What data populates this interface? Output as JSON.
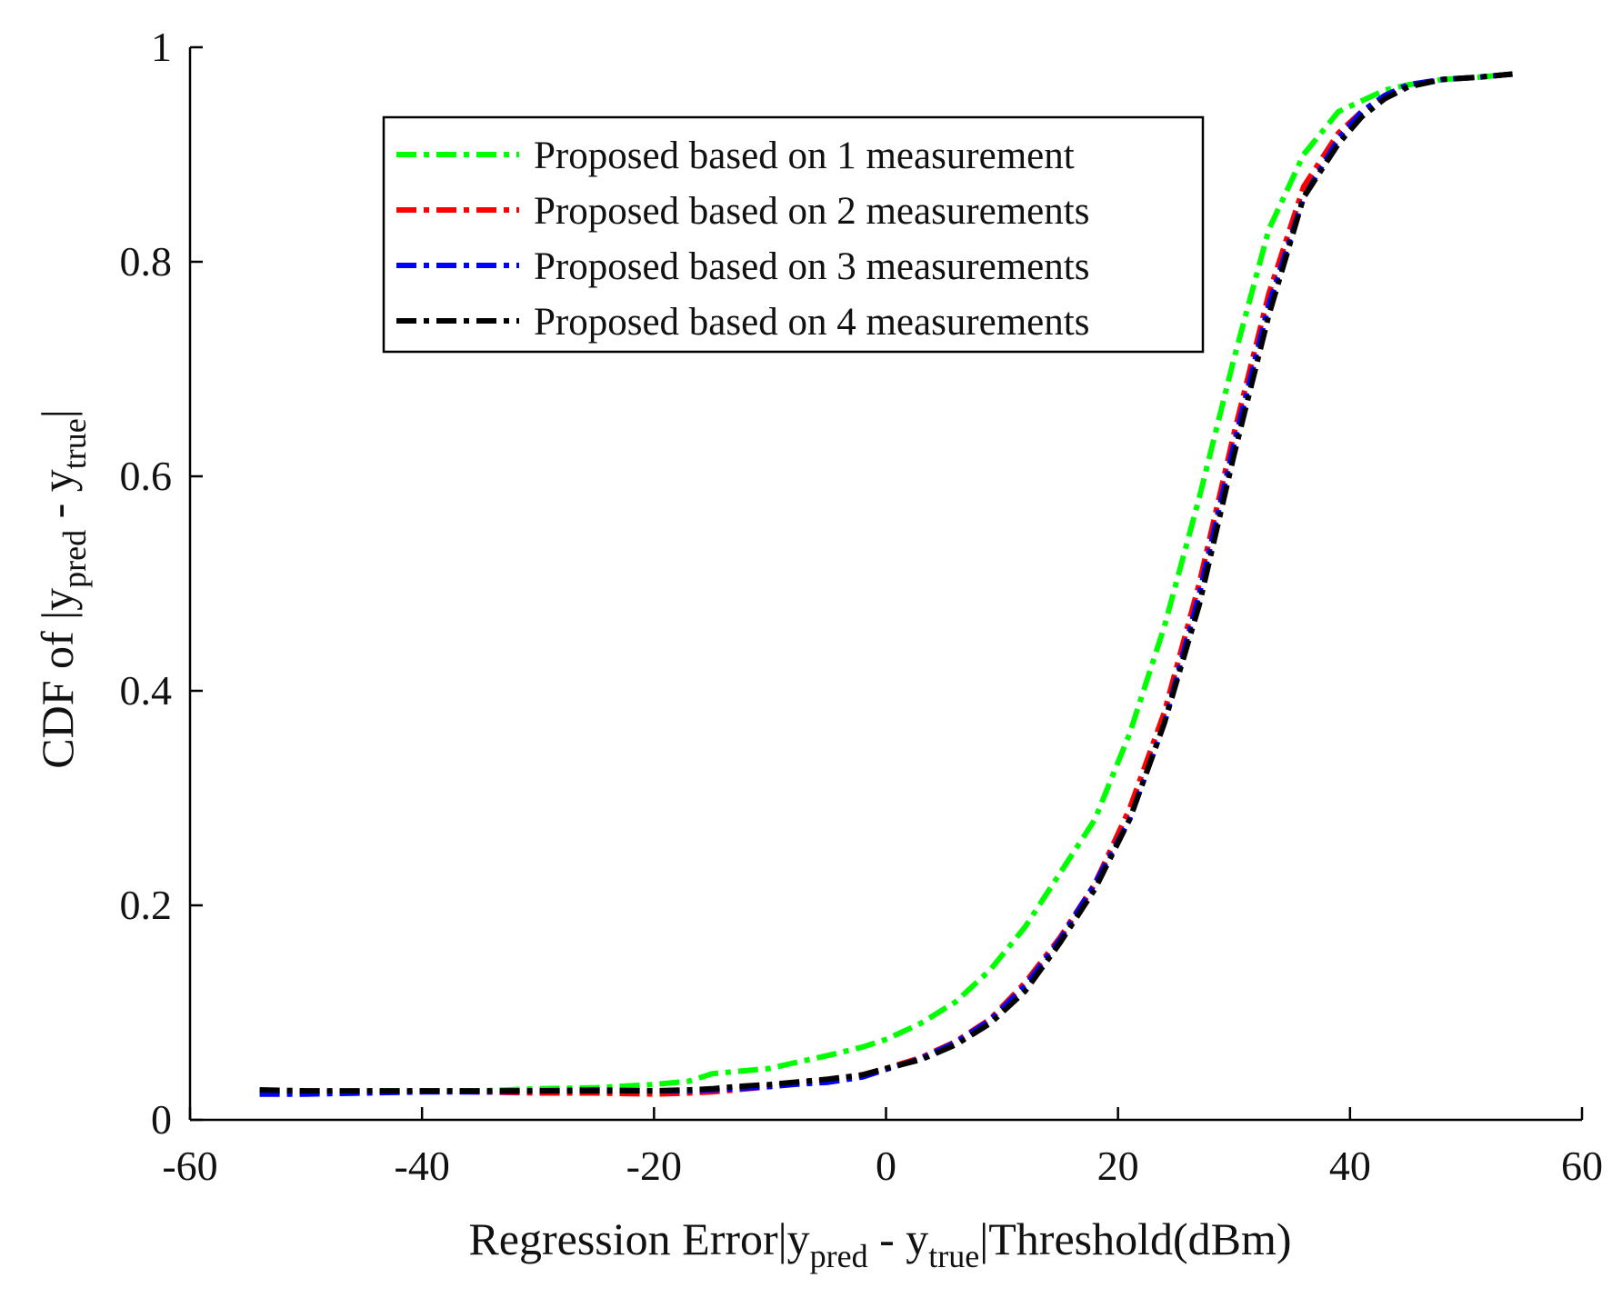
{
  "chart_data": {
    "type": "line",
    "title": "",
    "xlabel": {
      "parts": [
        "Regression Error|y",
        "pred",
        " - y",
        "true",
        "|Threshold(dBm)"
      ]
    },
    "ylabel": {
      "parts": [
        "CDF of |y",
        "pred",
        " - y",
        "true",
        "|"
      ]
    },
    "xlim": [
      -60,
      60
    ],
    "ylim": [
      0,
      1
    ],
    "xticks": [
      -60,
      -40,
      -20,
      0,
      20,
      40,
      60
    ],
    "xtick_labels": [
      "-60",
      "-40",
      "-20",
      "0",
      "20",
      "40",
      "60"
    ],
    "yticks": [
      0,
      0.2,
      0.4,
      0.6,
      0.8,
      1
    ],
    "ytick_labels": [
      "0",
      "0.2",
      "0.4",
      "0.6",
      "0.8",
      "1"
    ],
    "grid": false,
    "legend_position": "top-center",
    "series": [
      {
        "name": "Proposed based on 1 measurement",
        "color": "#00ff00",
        "style": "dash-dot",
        "x": [
          -54,
          -50,
          -45,
          -40,
          -35,
          -30,
          -25,
          -20,
          -17,
          -15,
          -13,
          -10,
          -8,
          -5,
          -2,
          0,
          3,
          6,
          9,
          12,
          15,
          18,
          21,
          24,
          27,
          30,
          33,
          36,
          39,
          41,
          43,
          45,
          48,
          51,
          54
        ],
        "y": [
          0.026,
          0.026,
          0.027,
          0.027,
          0.027,
          0.029,
          0.03,
          0.033,
          0.036,
          0.043,
          0.045,
          0.048,
          0.053,
          0.06,
          0.068,
          0.075,
          0.09,
          0.11,
          0.14,
          0.18,
          0.23,
          0.28,
          0.36,
          0.46,
          0.58,
          0.71,
          0.83,
          0.9,
          0.94,
          0.95,
          0.96,
          0.965,
          0.97,
          0.972,
          0.975
        ]
      },
      {
        "name": "Proposed based on 2 measurements",
        "color": "#ff0000",
        "style": "dash-dot",
        "x": [
          -54,
          -50,
          -45,
          -40,
          -35,
          -30,
          -25,
          -20,
          -17,
          -15,
          -13,
          -10,
          -8,
          -5,
          -2,
          0,
          3,
          6,
          9,
          12,
          15,
          18,
          21,
          24,
          27,
          30,
          33,
          36,
          39,
          41,
          43,
          45,
          48,
          51,
          54
        ],
        "y": [
          0.027,
          0.027,
          0.026,
          0.027,
          0.026,
          0.025,
          0.025,
          0.024,
          0.025,
          0.026,
          0.028,
          0.031,
          0.034,
          0.037,
          0.042,
          0.048,
          0.058,
          0.073,
          0.094,
          0.128,
          0.17,
          0.22,
          0.29,
          0.38,
          0.5,
          0.64,
          0.77,
          0.87,
          0.92,
          0.94,
          0.955,
          0.965,
          0.97,
          0.972,
          0.975
        ]
      },
      {
        "name": "Proposed based on 3 measurements",
        "color": "#0000ff",
        "style": "dash-dot",
        "x": [
          -54,
          -50,
          -45,
          -40,
          -35,
          -30,
          -25,
          -20,
          -17,
          -15,
          -13,
          -10,
          -8,
          -5,
          -2,
          0,
          3,
          6,
          9,
          12,
          15,
          18,
          21,
          24,
          27,
          30,
          33,
          36,
          39,
          41,
          43,
          45,
          48,
          51,
          54
        ],
        "y": [
          0.024,
          0.024,
          0.025,
          0.026,
          0.026,
          0.027,
          0.028,
          0.027,
          0.027,
          0.028,
          0.029,
          0.031,
          0.033,
          0.035,
          0.04,
          0.047,
          0.057,
          0.072,
          0.093,
          0.125,
          0.168,
          0.22,
          0.28,
          0.37,
          0.49,
          0.63,
          0.76,
          0.86,
          0.915,
          0.94,
          0.955,
          0.965,
          0.97,
          0.972,
          0.975
        ]
      },
      {
        "name": "Proposed based on 4 measurements",
        "color": "#000000",
        "style": "dash-dot",
        "x": [
          -54,
          -50,
          -45,
          -40,
          -35,
          -30,
          -25,
          -20,
          -17,
          -15,
          -13,
          -10,
          -8,
          -5,
          -2,
          0,
          3,
          6,
          9,
          12,
          15,
          18,
          21,
          24,
          27,
          30,
          33,
          36,
          39,
          41,
          43,
          45,
          48,
          51,
          54
        ],
        "y": [
          0.028,
          0.027,
          0.027,
          0.027,
          0.027,
          0.027,
          0.027,
          0.027,
          0.028,
          0.029,
          0.031,
          0.033,
          0.035,
          0.038,
          0.042,
          0.048,
          0.056,
          0.07,
          0.09,
          0.12,
          0.165,
          0.215,
          0.28,
          0.37,
          0.48,
          0.62,
          0.75,
          0.86,
          0.91,
          0.935,
          0.952,
          0.963,
          0.97,
          0.972,
          0.975
        ]
      }
    ]
  }
}
